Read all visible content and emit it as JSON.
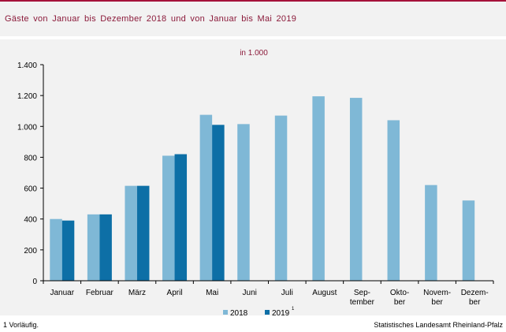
{
  "title": "Gäste von Januar bis Dezember 2018 und von Januar bis Mai 2019",
  "footnote": "1 Vorläufig.",
  "source": "Statistisches Landesamt Rheinland-Pfalz",
  "colors": {
    "accent": "#a5123a",
    "series2018": "#7fb8d6",
    "series2019": "#0d6fa6"
  },
  "chart_data": {
    "type": "bar",
    "subtitle": "in 1.000",
    "categories": [
      [
        "Januar"
      ],
      [
        "Februar"
      ],
      [
        "März"
      ],
      [
        "April"
      ],
      [
        "Mai"
      ],
      [
        "Juni"
      ],
      [
        "Juli"
      ],
      [
        "August"
      ],
      [
        "Sep-",
        "tember"
      ],
      [
        "Okto-",
        "ber"
      ],
      [
        "Novem-",
        "ber"
      ],
      [
        "Dezem-",
        "ber"
      ]
    ],
    "series": [
      {
        "name": "2018",
        "color": "#7fb8d6",
        "values": [
          400,
          430,
          615,
          810,
          1075,
          1015,
          1070,
          1195,
          1185,
          1040,
          620,
          520
        ]
      },
      {
        "name": "2019",
        "footnote_mark": "1",
        "color": "#0d6fa6",
        "values": [
          390,
          430,
          615,
          820,
          1010,
          null,
          null,
          null,
          null,
          null,
          null,
          null
        ]
      }
    ],
    "ylim": [
      0,
      1400
    ],
    "yticks": [
      0,
      200,
      400,
      600,
      800,
      1000,
      1200,
      1400
    ],
    "ytick_labels": [
      "0",
      "200",
      "400",
      "600",
      "800",
      "1.000",
      "1.200",
      "1.400"
    ],
    "grid": false,
    "legend": "bottom-center"
  }
}
